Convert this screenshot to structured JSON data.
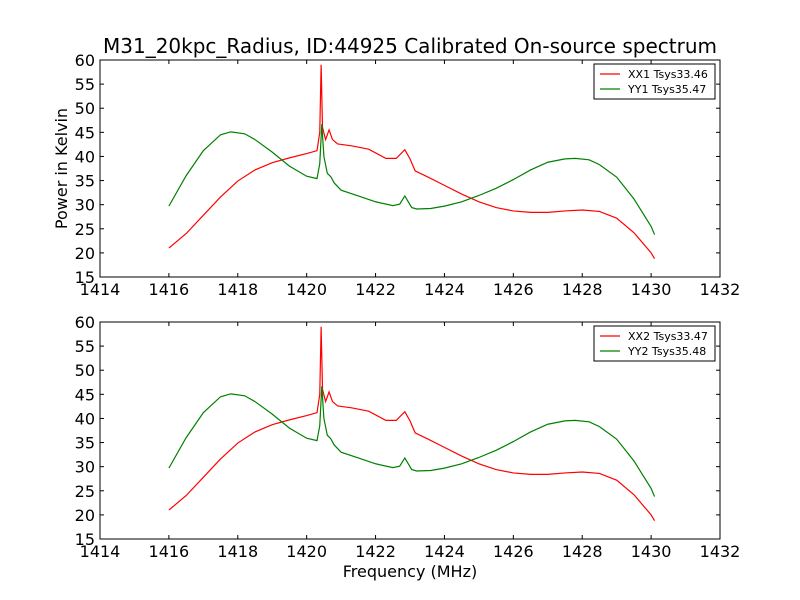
{
  "chart_data": {
    "type": "line",
    "title": "M31_20kpc_Radius, ID:44925 Calibrated On-source spectrum",
    "xlabel": "Frequency (MHz)",
    "ylabel": "Power in Kelvin",
    "xlim": [
      1414,
      1432
    ],
    "x_ticks": [
      1414,
      1416,
      1418,
      1420,
      1422,
      1424,
      1426,
      1428,
      1430,
      1432
    ],
    "grid": false,
    "colors": {
      "red": "#ff0000",
      "green": "#008000"
    },
    "panels": [
      {
        "panel": "top",
        "ylim": [
          15,
          60
        ],
        "y_ticks": [
          15,
          20,
          25,
          30,
          35,
          40,
          45,
          50,
          55,
          60
        ],
        "ylabel": "Power in Kelvin",
        "xlabel": "",
        "legend_position": "top-right",
        "series": [
          {
            "name": "XX1 Tsys33.46",
            "color": "#ff0000",
            "points": [
              [
                1416.0,
                21.0
              ],
              [
                1416.5,
                24.0
              ],
              [
                1417.0,
                27.8
              ],
              [
                1417.5,
                31.6
              ],
              [
                1418.0,
                34.9
              ],
              [
                1418.5,
                37.2
              ],
              [
                1419.0,
                38.7
              ],
              [
                1419.5,
                39.7
              ],
              [
                1420.0,
                40.6
              ],
              [
                1420.3,
                41.2
              ],
              [
                1420.38,
                45.0
              ],
              [
                1420.42,
                59.0
              ],
              [
                1420.46,
                46.0
              ],
              [
                1420.55,
                43.5
              ],
              [
                1420.65,
                45.5
              ],
              [
                1420.75,
                43.5
              ],
              [
                1420.9,
                42.6
              ],
              [
                1421.3,
                42.2
              ],
              [
                1421.8,
                41.5
              ],
              [
                1422.3,
                39.6
              ],
              [
                1422.6,
                39.6
              ],
              [
                1422.85,
                41.4
              ],
              [
                1423.0,
                39.5
              ],
              [
                1423.15,
                37.0
              ],
              [
                1423.5,
                35.8
              ],
              [
                1424.0,
                34.0
              ],
              [
                1424.5,
                32.2
              ],
              [
                1425.0,
                30.6
              ],
              [
                1425.5,
                29.4
              ],
              [
                1426.0,
                28.7
              ],
              [
                1426.5,
                28.4
              ],
              [
                1427.0,
                28.4
              ],
              [
                1427.5,
                28.7
              ],
              [
                1428.0,
                28.9
              ],
              [
                1428.5,
                28.6
              ],
              [
                1429.0,
                27.2
              ],
              [
                1429.5,
                24.2
              ],
              [
                1430.0,
                20.0
              ],
              [
                1430.1,
                18.8
              ]
            ]
          },
          {
            "name": "YY1 Tsys35.47",
            "color": "#008000",
            "points": [
              [
                1416.0,
                29.7
              ],
              [
                1416.5,
                36.0
              ],
              [
                1417.0,
                41.2
              ],
              [
                1417.5,
                44.5
              ],
              [
                1417.8,
                45.1
              ],
              [
                1418.2,
                44.7
              ],
              [
                1418.5,
                43.5
              ],
              [
                1419.0,
                40.9
              ],
              [
                1419.5,
                38.0
              ],
              [
                1420.0,
                35.9
              ],
              [
                1420.3,
                35.4
              ],
              [
                1420.38,
                38.5
              ],
              [
                1420.44,
                46.7
              ],
              [
                1420.5,
                40.0
              ],
              [
                1420.6,
                36.5
              ],
              [
                1420.7,
                35.8
              ],
              [
                1420.8,
                34.5
              ],
              [
                1421.0,
                33.0
              ],
              [
                1421.5,
                31.8
              ],
              [
                1422.0,
                30.6
              ],
              [
                1422.5,
                29.8
              ],
              [
                1422.7,
                30.1
              ],
              [
                1422.85,
                31.8
              ],
              [
                1422.95,
                30.6
              ],
              [
                1423.05,
                29.4
              ],
              [
                1423.2,
                29.1
              ],
              [
                1423.6,
                29.2
              ],
              [
                1424.0,
                29.7
              ],
              [
                1424.5,
                30.6
              ],
              [
                1425.0,
                31.9
              ],
              [
                1425.5,
                33.4
              ],
              [
                1426.0,
                35.2
              ],
              [
                1426.5,
                37.2
              ],
              [
                1427.0,
                38.8
              ],
              [
                1427.5,
                39.5
              ],
              [
                1427.8,
                39.6
              ],
              [
                1428.2,
                39.3
              ],
              [
                1428.5,
                38.3
              ],
              [
                1429.0,
                35.7
              ],
              [
                1429.5,
                31.2
              ],
              [
                1430.0,
                25.5
              ],
              [
                1430.1,
                23.8
              ]
            ]
          }
        ]
      },
      {
        "panel": "bottom",
        "ylim": [
          15,
          60
        ],
        "y_ticks": [
          15,
          20,
          25,
          30,
          35,
          40,
          45,
          50,
          55,
          60
        ],
        "ylabel": "",
        "xlabel": "Frequency (MHz)",
        "legend_position": "top-right",
        "series": [
          {
            "name": "XX2 Tsys33.47",
            "color": "#ff0000",
            "points": [
              [
                1416.0,
                21.0
              ],
              [
                1416.5,
                24.0
              ],
              [
                1417.0,
                27.8
              ],
              [
                1417.5,
                31.6
              ],
              [
                1418.0,
                34.9
              ],
              [
                1418.5,
                37.2
              ],
              [
                1419.0,
                38.7
              ],
              [
                1419.5,
                39.7
              ],
              [
                1420.0,
                40.6
              ],
              [
                1420.3,
                41.2
              ],
              [
                1420.38,
                45.0
              ],
              [
                1420.42,
                59.0
              ],
              [
                1420.46,
                46.0
              ],
              [
                1420.55,
                43.5
              ],
              [
                1420.65,
                45.5
              ],
              [
                1420.75,
                43.5
              ],
              [
                1420.9,
                42.6
              ],
              [
                1421.3,
                42.2
              ],
              [
                1421.8,
                41.5
              ],
              [
                1422.3,
                39.6
              ],
              [
                1422.6,
                39.6
              ],
              [
                1422.85,
                41.4
              ],
              [
                1423.0,
                39.5
              ],
              [
                1423.15,
                37.0
              ],
              [
                1423.5,
                35.8
              ],
              [
                1424.0,
                34.0
              ],
              [
                1424.5,
                32.2
              ],
              [
                1425.0,
                30.6
              ],
              [
                1425.5,
                29.4
              ],
              [
                1426.0,
                28.7
              ],
              [
                1426.5,
                28.4
              ],
              [
                1427.0,
                28.4
              ],
              [
                1427.5,
                28.7
              ],
              [
                1428.0,
                28.9
              ],
              [
                1428.5,
                28.6
              ],
              [
                1429.0,
                27.2
              ],
              [
                1429.5,
                24.2
              ],
              [
                1430.0,
                20.0
              ],
              [
                1430.1,
                18.8
              ]
            ]
          },
          {
            "name": "YY2 Tsys35.48",
            "color": "#008000",
            "points": [
              [
                1416.0,
                29.7
              ],
              [
                1416.5,
                36.0
              ],
              [
                1417.0,
                41.2
              ],
              [
                1417.5,
                44.5
              ],
              [
                1417.8,
                45.1
              ],
              [
                1418.2,
                44.7
              ],
              [
                1418.5,
                43.5
              ],
              [
                1419.0,
                40.9
              ],
              [
                1419.5,
                38.0
              ],
              [
                1420.0,
                35.9
              ],
              [
                1420.3,
                35.4
              ],
              [
                1420.38,
                38.5
              ],
              [
                1420.44,
                46.7
              ],
              [
                1420.5,
                40.0
              ],
              [
                1420.6,
                36.5
              ],
              [
                1420.7,
                35.8
              ],
              [
                1420.8,
                34.5
              ],
              [
                1421.0,
                33.0
              ],
              [
                1421.5,
                31.8
              ],
              [
                1422.0,
                30.6
              ],
              [
                1422.5,
                29.8
              ],
              [
                1422.7,
                30.1
              ],
              [
                1422.85,
                31.8
              ],
              [
                1422.95,
                30.6
              ],
              [
                1423.05,
                29.4
              ],
              [
                1423.2,
                29.1
              ],
              [
                1423.6,
                29.2
              ],
              [
                1424.0,
                29.7
              ],
              [
                1424.5,
                30.6
              ],
              [
                1425.0,
                31.9
              ],
              [
                1425.5,
                33.4
              ],
              [
                1426.0,
                35.2
              ],
              [
                1426.5,
                37.2
              ],
              [
                1427.0,
                38.8
              ],
              [
                1427.5,
                39.5
              ],
              [
                1427.8,
                39.6
              ],
              [
                1428.2,
                39.3
              ],
              [
                1428.5,
                38.3
              ],
              [
                1429.0,
                35.7
              ],
              [
                1429.5,
                31.2
              ],
              [
                1430.0,
                25.5
              ],
              [
                1430.1,
                23.8
              ]
            ]
          }
        ]
      }
    ]
  }
}
